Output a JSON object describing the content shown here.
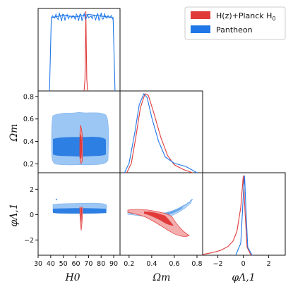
{
  "chart_data": {
    "type": "corner",
    "parameters": [
      {
        "name": "H_0",
        "label": "H0",
        "range": [
          30,
          95
        ],
        "ticks": [
          "30",
          "40",
          "50",
          "60",
          "70",
          "80",
          "90"
        ]
      },
      {
        "name": "Omega_m",
        "label": "Ωm",
        "range": [
          0.12,
          0.85
        ],
        "ticks": [
          "0.2",
          "0.4",
          "0.6",
          "0.8"
        ],
        "ticks_y": [
          "0.2",
          "0.4",
          "0.6",
          "0.8"
        ]
      },
      {
        "name": "phi_Lambda_1",
        "label": "φΛ,1",
        "range": [
          -3.2,
          3.3
        ],
        "ticks": [
          "−2",
          "0",
          "2"
        ],
        "ticks_y": [
          "−2",
          "0",
          "2"
        ]
      }
    ],
    "legend": {
      "placement": "top-right",
      "entries": [
        {
          "label_main": "H(z)+Planck H",
          "label_sub": "0",
          "color": "#e03a3a"
        },
        {
          "label_main": "Pantheon",
          "label_sub": "",
          "color": "#1f77e8"
        }
      ]
    },
    "series": [
      {
        "name": "H(z)+Planck H0",
        "color": "#e03a3a",
        "marginals": {
          "H_0": {
            "x": [
              66.5,
              67.2,
              67.6,
              67.9,
              68.2,
              68.6,
              69.3
            ],
            "y": [
              0,
              0.15,
              0.6,
              1.0,
              0.6,
              0.15,
              0
            ]
          },
          "Omega_m": {
            "x": [
              0.18,
              0.22,
              0.26,
              0.3,
              0.34,
              0.37,
              0.42,
              0.48,
              0.54,
              0.6,
              0.68,
              0.76
            ],
            "y": [
              0,
              0.12,
              0.45,
              0.82,
              1.0,
              0.98,
              0.75,
              0.45,
              0.22,
              0.1,
              0.04,
              0
            ]
          },
          "phi_Lambda_1": {
            "x": [
              -3.2,
              -2.5,
              -1.8,
              -1.2,
              -0.8,
              -0.5,
              -0.2,
              0,
              0.15,
              0.3,
              0.6
            ],
            "y": [
              0.01,
              0.03,
              0.06,
              0.11,
              0.18,
              0.3,
              0.6,
              1.0,
              0.5,
              0.1,
              0
            ]
          }
        }
      },
      {
        "name": "Pantheon",
        "color": "#1f77e8",
        "marginals": {
          "H_0": {
            "x": [
              39,
              40.5,
              50,
              60,
              70,
              80,
              89.5,
              91
            ],
            "y": [
              0,
              0.92,
              0.95,
              0.93,
              0.96,
              0.94,
              0.92,
              0
            ]
          },
          "Omega_m": {
            "x": [
              0.16,
              0.2,
              0.25,
              0.29,
              0.33,
              0.36,
              0.4,
              0.46,
              0.52,
              0.6,
              0.7,
              0.8
            ],
            "y": [
              0,
              0.12,
              0.5,
              0.86,
              1.0,
              0.95,
              0.7,
              0.4,
              0.2,
              0.12,
              0.08,
              0
            ]
          },
          "phi_Lambda_1": {
            "x": [
              -0.6,
              -0.2,
              0,
              0.1,
              0.2,
              0.35,
              0.7
            ],
            "y": [
              0,
              0.15,
              0.75,
              1.0,
              0.6,
              0.1,
              0
            ]
          }
        }
      }
    ]
  }
}
